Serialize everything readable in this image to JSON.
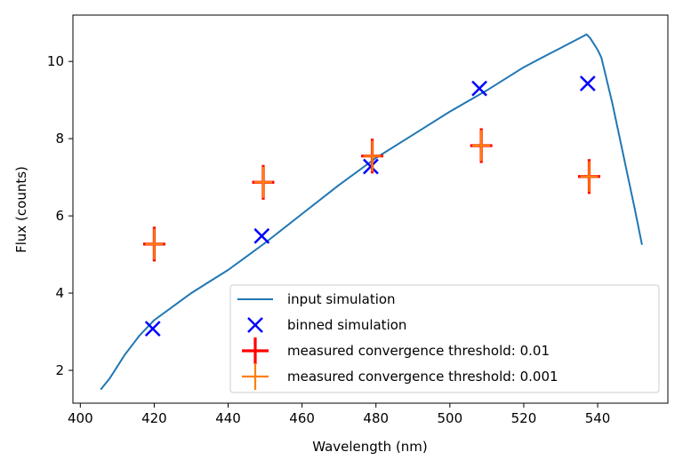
{
  "chart_data": {
    "type": "scatter",
    "xlabel": "Wavelength (nm)",
    "ylabel": "Flux (counts)",
    "xlim": [
      398,
      559
    ],
    "ylim": [
      1.15,
      11.2
    ],
    "xticks": [
      400,
      420,
      440,
      460,
      480,
      500,
      520,
      540
    ],
    "yticks": [
      2,
      4,
      6,
      8,
      10
    ],
    "grid": false,
    "legend_position": "lower-right",
    "series": [
      {
        "name": "input simulation",
        "kind": "line",
        "color": "#1f77b4",
        "x": [
          405.5,
          408,
          410,
          412,
          414,
          416,
          418,
          420,
          425,
          430,
          435,
          440,
          445,
          450,
          460,
          470,
          480,
          490,
          500,
          510,
          520,
          525,
          530,
          535,
          537,
          538,
          539,
          540,
          541,
          542,
          544,
          546,
          548,
          550,
          552
        ],
        "y": [
          1.5,
          1.8,
          2.1,
          2.4,
          2.65,
          2.9,
          3.1,
          3.3,
          3.65,
          4.0,
          4.3,
          4.6,
          4.95,
          5.3,
          6.05,
          6.8,
          7.5,
          8.1,
          8.7,
          9.25,
          9.85,
          10.1,
          10.35,
          10.6,
          10.7,
          10.6,
          10.45,
          10.3,
          10.1,
          9.7,
          8.9,
          8.0,
          7.1,
          6.2,
          5.25
        ]
      },
      {
        "name": "binned simulation",
        "kind": "marker-x",
        "color": "#0000ff",
        "x": [
          419.6,
          449.1,
          478.6,
          508.0,
          537.3
        ],
        "y": [
          3.08,
          5.48,
          7.28,
          9.3,
          9.43
        ]
      },
      {
        "name": "measured convergence threshold: 0.01",
        "kind": "errorbar",
        "color": "#ff0000",
        "x": [
          420,
          449.5,
          479,
          508.5,
          537.7
        ],
        "y": [
          5.27,
          6.87,
          7.55,
          7.82,
          7.02
        ],
        "xerr": [
          3,
          3,
          3,
          3,
          3
        ],
        "yerr": [
          0.45,
          0.45,
          0.45,
          0.45,
          0.45
        ]
      },
      {
        "name": "measured convergence threshold: 0.001",
        "kind": "errorbar",
        "color": "#ff7f0e",
        "x": [
          420,
          449.5,
          479,
          508.5,
          537.7
        ],
        "y": [
          5.27,
          6.87,
          7.55,
          7.82,
          7.02
        ],
        "xerr": [
          2.4,
          2.4,
          2.4,
          2.4,
          2.4
        ],
        "yerr": [
          0.4,
          0.4,
          0.4,
          0.4,
          0.4
        ]
      }
    ]
  }
}
